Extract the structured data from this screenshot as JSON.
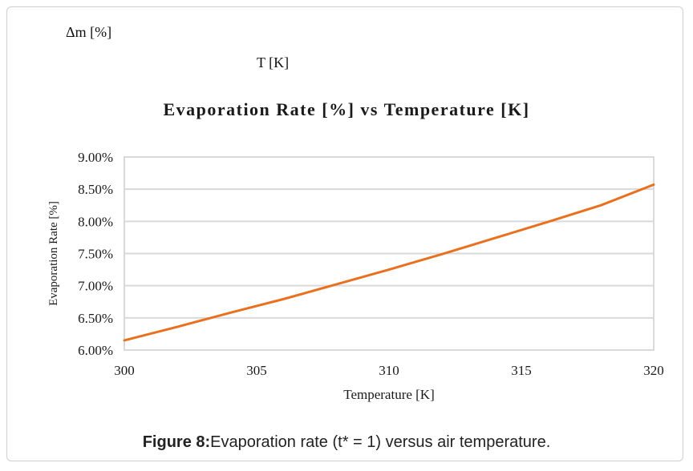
{
  "stray_labels": {
    "delta_m": "Δm [%]",
    "t_k": "T [K]"
  },
  "caption": {
    "label": "Figure 8:",
    "text": "Evaporation rate (t* = 1) versus air temperature."
  },
  "colors": {
    "series": "#E8701E",
    "grid": "#d9d9d9",
    "plot_border": "#d9d9d9"
  },
  "chart_data": {
    "type": "line",
    "title": "Evaporation Rate [%] vs Temperature [K]",
    "xlabel": "Temperature [K]",
    "ylabel": "Evaporation Rate [%]",
    "xlim": [
      300,
      320
    ],
    "ylim": [
      6.0,
      9.0
    ],
    "xticks": [
      300,
      305,
      310,
      315,
      320
    ],
    "xtick_labels": [
      "300",
      "305",
      "310",
      "315",
      "320"
    ],
    "yticks": [
      6.0,
      6.5,
      7.0,
      7.5,
      8.0,
      8.5,
      9.0
    ],
    "ytick_labels": [
      "6.00%",
      "6.50%",
      "7.00%",
      "7.50%",
      "8.00%",
      "8.50%",
      "9.00%"
    ],
    "grid": true,
    "series": [
      {
        "name": "Evaporation Rate",
        "x": [
          300,
          302,
          304,
          306,
          308,
          310,
          312,
          314,
          316,
          318,
          320
        ],
        "y": [
          6.15,
          6.36,
          6.58,
          6.79,
          7.02,
          7.25,
          7.49,
          7.74,
          7.99,
          8.25,
          8.57
        ]
      }
    ]
  }
}
